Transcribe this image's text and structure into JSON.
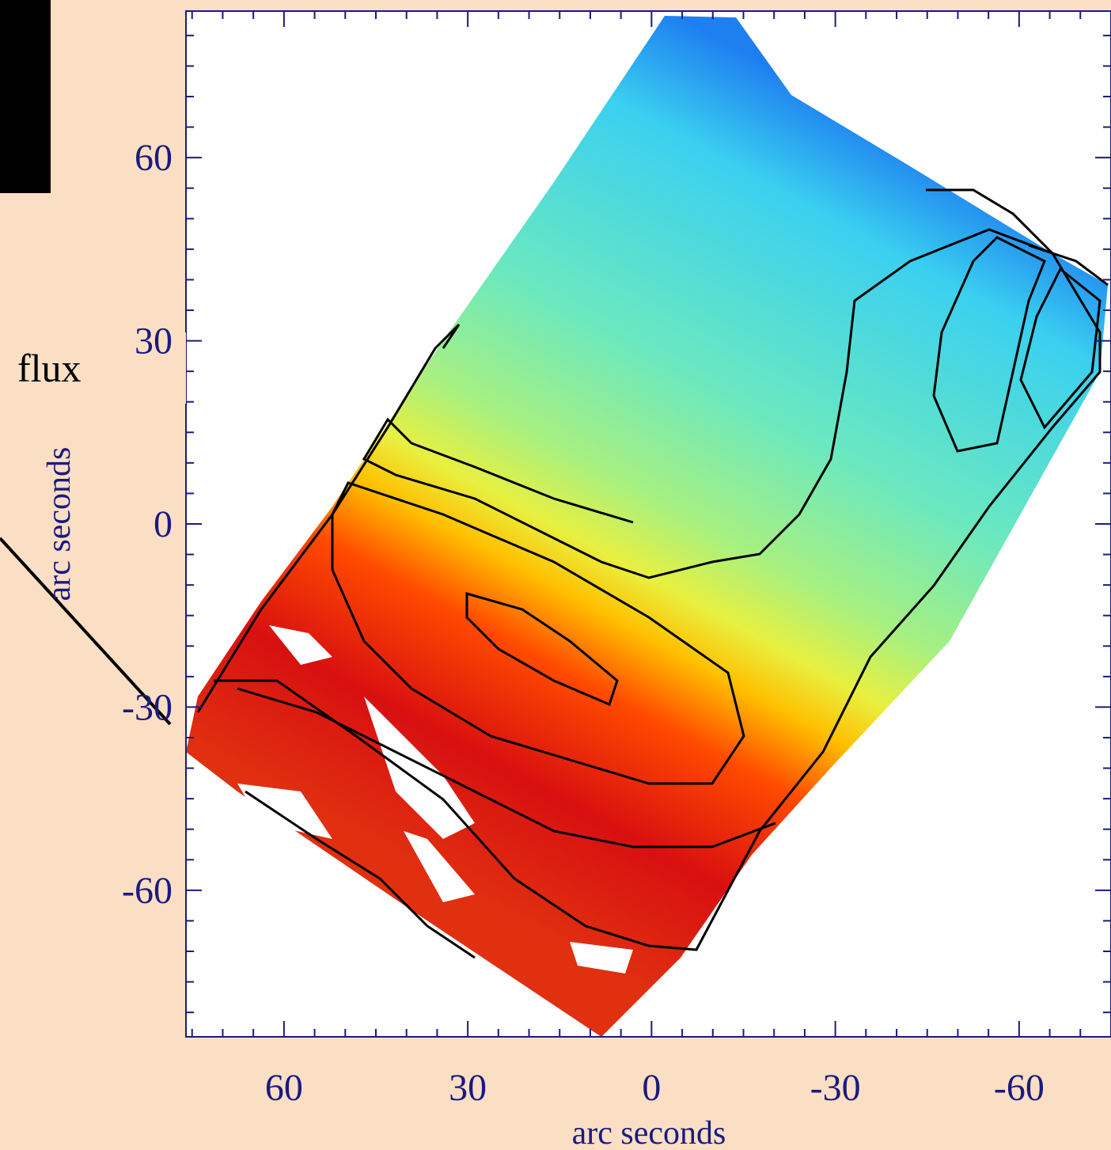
{
  "chart_data": {
    "type": "image",
    "x_label": "arc seconds",
    "y_label": "arc seconds",
    "annotation": "flux",
    "xlim": [
      76,
      -75
    ],
    "ylim": [
      -84,
      84
    ],
    "xticks": [
      60,
      30,
      0,
      -30,
      -60
    ],
    "yticks": [
      60,
      30,
      0,
      -30,
      -60
    ],
    "xminorticks": [
      75,
      70,
      65,
      55,
      50,
      45,
      40,
      35,
      25,
      20,
      15,
      10,
      5,
      -5,
      -10,
      -15,
      -20,
      -25,
      -35,
      -40,
      -45,
      -50,
      -55,
      -65,
      -70
    ],
    "yminorticks": [
      80,
      75,
      70,
      65,
      55,
      50,
      45,
      40,
      35,
      25,
      20,
      15,
      10,
      5,
      -5,
      -10,
      -15,
      -20,
      -25,
      -35,
      -40,
      -45,
      -50,
      -55,
      -65,
      -70,
      -75,
      -80
    ],
    "axis_color": "#1a1a80",
    "background": "#fbdfc4"
  }
}
